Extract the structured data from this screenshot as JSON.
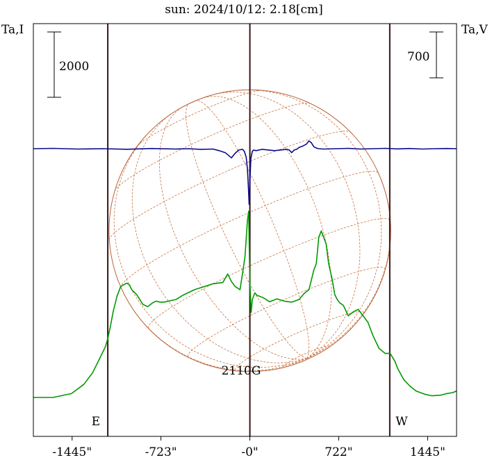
{
  "chart_data": {
    "type": "line",
    "title": "sun: 2024/10/12: 2.18[cm]",
    "y_left_label": "Ta,I",
    "y_right_label": "Ta,V",
    "scale_left_label": "2000",
    "scale_right_label": "700",
    "annotation": "2110G",
    "limb_left_label": "E",
    "limb_right_label": "W",
    "xlim": [
      -1760,
      1680
    ],
    "x_ticks": [
      {
        "value": -1445,
        "label": "-1445\""
      },
      {
        "value": -723,
        "label": "-723\""
      },
      {
        "value": 0,
        "label": "-0\""
      },
      {
        "value": 722,
        "label": "722\""
      },
      {
        "value": 1445,
        "label": "1445\""
      }
    ],
    "vertical_lines": [
      -1155,
      0,
      1137
    ],
    "solar_disk": {
      "radius_arcsec": 1145,
      "center_x_arcsec": 0
    },
    "colors": {
      "title": "#1a1a8c",
      "frame": "#000000",
      "vline": "#3a1414",
      "disk": "#b8623c",
      "grid": "#c8703c",
      "intensity": "#009900",
      "stokes_v": "#0a0a8a"
    },
    "series": [
      {
        "name": "Ta,I",
        "axis": "left",
        "x": [
          -1760,
          -1600,
          -1450,
          -1350,
          -1280,
          -1220,
          -1175,
          -1155,
          -1135,
          -1110,
          -1080,
          -1050,
          -1000,
          -980,
          -960,
          -920,
          -870,
          -830,
          -790,
          -760,
          -730,
          -700,
          -650,
          -600,
          -550,
          -450,
          -300,
          -220,
          -180,
          -150,
          -120,
          -80,
          -60,
          -40,
          -20,
          -10,
          0,
          10,
          20,
          40,
          60,
          80,
          110,
          160,
          220,
          280,
          340,
          400,
          440,
          480,
          520,
          540,
          560,
          580,
          620,
          640,
          670,
          690,
          710,
          730,
          760,
          800,
          840,
          880,
          920,
          960,
          1000,
          1050,
          1100,
          1140,
          1180,
          1200,
          1250,
          1300,
          1350,
          1420,
          1480,
          1550,
          1600,
          1650,
          1680
        ],
        "y": [
          500,
          500,
          620,
          900,
          1250,
          1700,
          2050,
          2300,
          2650,
          3150,
          3600,
          3900,
          4000,
          3950,
          3800,
          3650,
          3350,
          3280,
          3400,
          3450,
          3420,
          3420,
          3460,
          3500,
          3620,
          3800,
          3980,
          4020,
          4280,
          4050,
          3900,
          3800,
          4300,
          4800,
          5900,
          6200,
          4000,
          3100,
          3500,
          3700,
          3620,
          3600,
          3550,
          3430,
          3520,
          3450,
          3420,
          3500,
          3680,
          3800,
          4400,
          4600,
          5400,
          5600,
          5200,
          4600,
          4100,
          3650,
          3500,
          3400,
          3320,
          3000,
          3120,
          3200,
          3000,
          2800,
          2400,
          2000,
          1850,
          1850,
          1600,
          1400,
          1050,
          850,
          700,
          600,
          550,
          570,
          620,
          650,
          700
        ]
      },
      {
        "name": "Ta,V",
        "axis": "right",
        "x": [
          -1760,
          -1600,
          -1400,
          -1200,
          -1000,
          -800,
          -600,
          -500,
          -400,
          -300,
          -250,
          -200,
          -150,
          -120,
          -90,
          -60,
          -45,
          -30,
          -20,
          -12,
          -6,
          0,
          8,
          20,
          30,
          50,
          100,
          200,
          300,
          320,
          340,
          360,
          380,
          400,
          430,
          460,
          480,
          500,
          520,
          540,
          560,
          600,
          700,
          800,
          900,
          1000,
          1100,
          1200,
          1300,
          1400,
          1500,
          1600,
          1680
        ],
        "y": [
          0,
          5,
          -5,
          0,
          -8,
          3,
          -5,
          0,
          -10,
          -5,
          -30,
          -60,
          -140,
          -70,
          -20,
          -10,
          -40,
          -130,
          -300,
          -600,
          -850,
          -500,
          -150,
          -40,
          -20,
          -30,
          -10,
          -30,
          -10,
          -20,
          -60,
          -20,
          -10,
          20,
          40,
          70,
          120,
          90,
          30,
          10,
          0,
          -5,
          0,
          5,
          -5,
          0,
          5,
          -3,
          3,
          -5,
          0,
          3,
          0
        ]
      }
    ]
  }
}
